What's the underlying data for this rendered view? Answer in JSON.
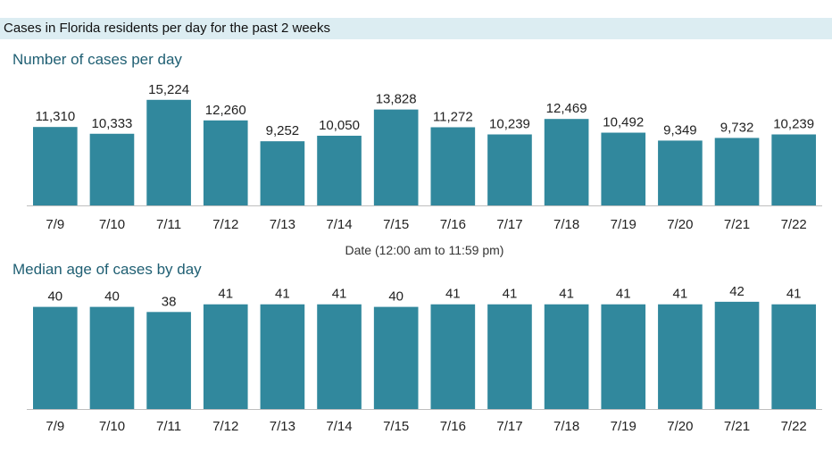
{
  "header": {
    "title": "Cases in Florida residents per day for the past 2 weeks"
  },
  "colors": {
    "bar": "#31889d",
    "axis": "#bfbfbf",
    "header_bg": "#dcedf2",
    "title": "#1f5f73"
  },
  "chart_data": [
    {
      "type": "bar",
      "title": "Number of cases per day",
      "xlabel": "Date (12:00 am to 11:59 pm)",
      "ylabel": "",
      "grid": false,
      "ylim": [
        0,
        17000
      ],
      "categories": [
        "7/9",
        "7/10",
        "7/11",
        "7/12",
        "7/13",
        "7/14",
        "7/15",
        "7/16",
        "7/17",
        "7/18",
        "7/19",
        "7/20",
        "7/21",
        "7/22"
      ],
      "values": [
        11310,
        10333,
        15224,
        12260,
        9252,
        10050,
        13828,
        11272,
        10239,
        12469,
        10492,
        9349,
        9732,
        10239
      ],
      "data_labels": [
        "11,310",
        "10,333",
        "15,224",
        "12,260",
        "9,252",
        "10,050",
        "13,828",
        "11,272",
        "10,239",
        "12,469",
        "10,492",
        "9,349",
        "9,732",
        "10,239"
      ]
    },
    {
      "type": "bar",
      "title": "Median age of cases by day",
      "xlabel": "",
      "ylabel": "",
      "grid": false,
      "ylim": [
        0,
        50
      ],
      "categories": [
        "7/9",
        "7/10",
        "7/11",
        "7/12",
        "7/13",
        "7/14",
        "7/15",
        "7/16",
        "7/17",
        "7/18",
        "7/19",
        "7/20",
        "7/21",
        "7/22"
      ],
      "values": [
        40,
        40,
        38,
        41,
        41,
        41,
        40,
        41,
        41,
        41,
        41,
        41,
        42,
        41
      ],
      "data_labels": [
        "40",
        "40",
        "38",
        "41",
        "41",
        "41",
        "40",
        "41",
        "41",
        "41",
        "41",
        "41",
        "42",
        "41"
      ]
    }
  ]
}
